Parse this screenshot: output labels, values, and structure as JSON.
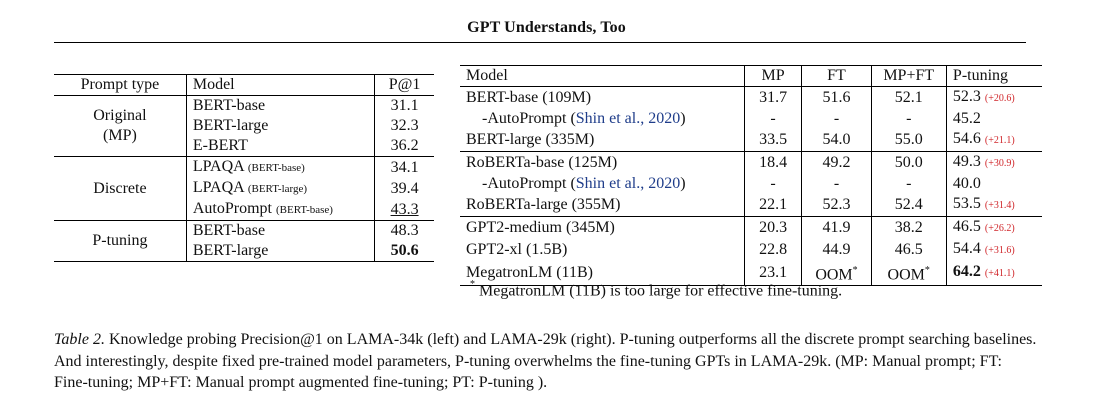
{
  "header": {
    "title": "GPT Understands, Too"
  },
  "left_table": {
    "columns": [
      "Prompt type",
      "Model",
      "P@1"
    ],
    "groups": [
      {
        "type": "Original",
        "type_sub": "(MP)",
        "rows": [
          {
            "model": "BERT-base",
            "variant": "",
            "p1": "31.1"
          },
          {
            "model": "BERT-large",
            "variant": "",
            "p1": "32.3"
          },
          {
            "model": "E-BERT",
            "variant": "",
            "p1": "36.2"
          }
        ]
      },
      {
        "type": "Discrete",
        "type_sub": "",
        "rows": [
          {
            "model": "LPAQA",
            "variant": "(BERT-base)",
            "p1": "34.1"
          },
          {
            "model": "LPAQA",
            "variant": "(BERT-large)",
            "p1": "39.4"
          },
          {
            "model": "AutoPrompt",
            "variant": "(BERT-base)",
            "p1": "43.3"
          }
        ]
      },
      {
        "type": "P-tuning",
        "type_sub": "",
        "rows": [
          {
            "model": "BERT-base",
            "variant": "",
            "p1": "48.3"
          },
          {
            "model": "BERT-large",
            "variant": "",
            "p1": "50.6"
          }
        ]
      }
    ]
  },
  "right_table": {
    "columns": [
      "Model",
      "MP",
      "FT",
      "MP+FT",
      "P-tuning"
    ],
    "groups": [
      [
        {
          "model": "BERT-base (109M)",
          "cite": "",
          "mp": "31.7",
          "ft": "51.6",
          "mpft": "52.1",
          "pt": "52.3",
          "delta": "(+20.6)"
        },
        {
          "model": "-AutoPrompt (",
          "cite": "Shin et al., 2020",
          "mp": "-",
          "ft": "-",
          "mpft": "-",
          "pt": "45.2",
          "delta": ""
        },
        {
          "model": "BERT-large (335M)",
          "cite": "",
          "mp": "33.5",
          "ft": "54.0",
          "mpft": "55.0",
          "pt": "54.6",
          "delta": "(+21.1)"
        }
      ],
      [
        {
          "model": "RoBERTa-base (125M)",
          "cite": "",
          "mp": "18.4",
          "ft": "49.2",
          "mpft": "50.0",
          "pt": "49.3",
          "delta": "(+30.9)"
        },
        {
          "model": "-AutoPrompt (",
          "cite": "Shin et al., 2020",
          "mp": "-",
          "ft": "-",
          "mpft": "-",
          "pt": "40.0",
          "delta": ""
        },
        {
          "model": "RoBERTa-large (355M)",
          "cite": "",
          "mp": "22.1",
          "ft": "52.3",
          "mpft": "52.4",
          "pt": "53.5",
          "delta": "(+31.4)"
        }
      ],
      [
        {
          "model": "GPT2-medium (345M)",
          "cite": "",
          "mp": "20.3",
          "ft": "41.9",
          "mpft": "38.2",
          "pt": "46.5",
          "delta": "(+26.2)"
        },
        {
          "model": "GPT2-xl (1.5B)",
          "cite": "",
          "mp": "22.8",
          "ft": "44.9",
          "mpft": "46.5",
          "pt": "54.4",
          "delta": "(+31.6)"
        },
        {
          "model": "MegatronLM (11B)",
          "cite": "",
          "mp": "23.1",
          "ft": "OOM*",
          "mpft": "OOM*",
          "pt": "64.2",
          "delta": "(+41.1)"
        }
      ]
    ]
  },
  "footnote": {
    "mark": "*",
    "text": "MegatronLM (11B) is too large for effective fine-tuning."
  },
  "caption": {
    "label": "Table 2.",
    "text": "Knowledge probing Precision@1 on LAMA-34k (left) and LAMA-29k (right). P-tuning outperforms all the discrete prompt searching baselines. And interestingly, despite fixed pre-trained model parameters, P-tuning overwhelms the fine-tuning GPTs in LAMA-29k. (MP: Manual prompt; FT: Fine-tuning; MP+FT: Manual prompt augmented fine-tuning; PT: P-tuning )."
  }
}
